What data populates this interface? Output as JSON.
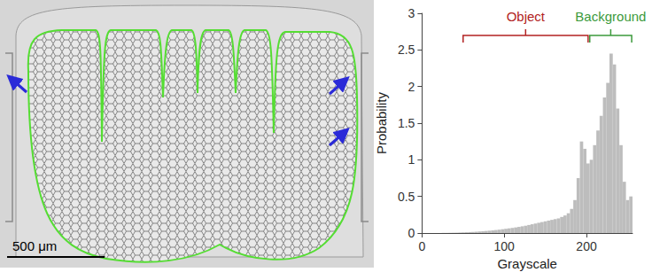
{
  "chart_data": {
    "type": "histogram",
    "x_label": "Grayscale",
    "y_label": "Probability",
    "bins": [
      0,
      4,
      8,
      12,
      16,
      20,
      24,
      28,
      32,
      36,
      40,
      44,
      48,
      52,
      56,
      60,
      64,
      68,
      72,
      76,
      80,
      84,
      88,
      92,
      96,
      100,
      104,
      108,
      112,
      116,
      120,
      124,
      128,
      132,
      136,
      140,
      144,
      148,
      152,
      156,
      160,
      164,
      168,
      172,
      176,
      180,
      184,
      188,
      192,
      196,
      200,
      204,
      208,
      212,
      216,
      220,
      224,
      228,
      232,
      236,
      240,
      244,
      248,
      252,
      256
    ],
    "values": [
      0,
      0,
      0,
      0,
      0,
      0,
      0.002,
      0.002,
      0.003,
      0.004,
      0.005,
      0.007,
      0.009,
      0.011,
      0.013,
      0.015,
      0.018,
      0.021,
      0.024,
      0.028,
      0.032,
      0.036,
      0.041,
      0.046,
      0.052,
      0.058,
      0.064,
      0.07,
      0.077,
      0.084,
      0.092,
      0.1,
      0.11,
      0.12,
      0.13,
      0.14,
      0.15,
      0.16,
      0.17,
      0.18,
      0.19,
      0.2,
      0.22,
      0.24,
      0.27,
      0.33,
      0.45,
      0.75,
      1.25,
      1.15,
      0.95,
      1.0,
      1.2,
      1.4,
      1.6,
      1.85,
      2.05,
      2.45,
      2.3,
      1.7,
      1.2,
      0.7,
      0.45,
      0.5
    ],
    "color": "#bdbdbd",
    "xlim": [
      0,
      256
    ],
    "xticks": [
      0,
      100,
      200
    ],
    "ylim": [
      0,
      3
    ],
    "yticks": [
      0,
      0.5,
      1,
      1.5,
      2,
      2.5,
      3
    ],
    "grid": false,
    "annotations": [
      {
        "text": "Object",
        "start": 50,
        "end": 202,
        "color": "#b22222"
      },
      {
        "text": "Background",
        "start": 204,
        "end": 255,
        "color": "#3c9a3c"
      }
    ]
  },
  "image": {
    "scale_bar": "500 μm"
  }
}
